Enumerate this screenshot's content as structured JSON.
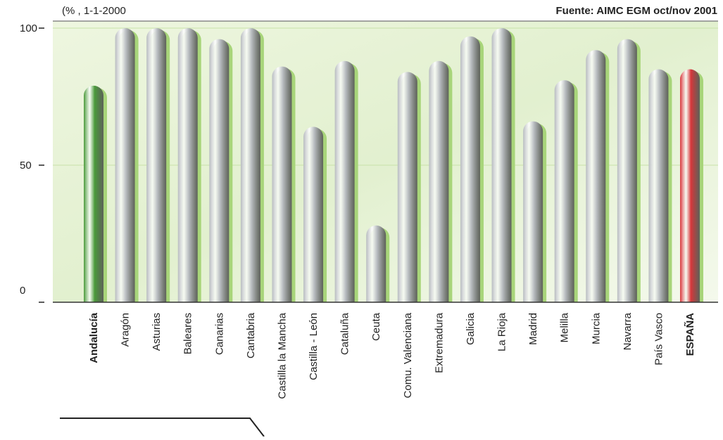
{
  "chart_data": {
    "type": "bar",
    "subtitle": "(% , 1-1-2000",
    "source": "Fuente: AIMC EGM oct/nov 2001",
    "categories": [
      "Andalucía",
      "Aragón",
      "Asturias",
      "Baleares",
      "Canarias",
      "Cantabria",
      "Castilla la Mancha",
      "Castilla - León",
      "Cataluña",
      "Ceuta",
      "Comu. Valenciana",
      "Extremadura",
      "Galicia",
      "La Rioja",
      "Madrid",
      "Melilla",
      "Murcia",
      "Navarra",
      "País Vasco",
      "ESPAÑA"
    ],
    "values": [
      79,
      100,
      100,
      100,
      96,
      100,
      86,
      64,
      88,
      28,
      84,
      88,
      97,
      100,
      66,
      81,
      92,
      96,
      85,
      85
    ],
    "color": "#b8bcc0",
    "colors": [
      "#4a9a3a",
      "#b8bcc0",
      "#b8bcc0",
      "#b8bcc0",
      "#b8bcc0",
      "#b8bcc0",
      "#b8bcc0",
      "#b8bcc0",
      "#b8bcc0",
      "#b8bcc0",
      "#b8bcc0",
      "#b8bcc0",
      "#b8bcc0",
      "#b8bcc0",
      "#b8bcc0",
      "#b8bcc0",
      "#b8bcc0",
      "#b8bcc0",
      "#b8bcc0",
      "#d8363a"
    ],
    "ylim": [
      0,
      100
    ],
    "yticks": [
      0,
      50,
      100
    ]
  }
}
